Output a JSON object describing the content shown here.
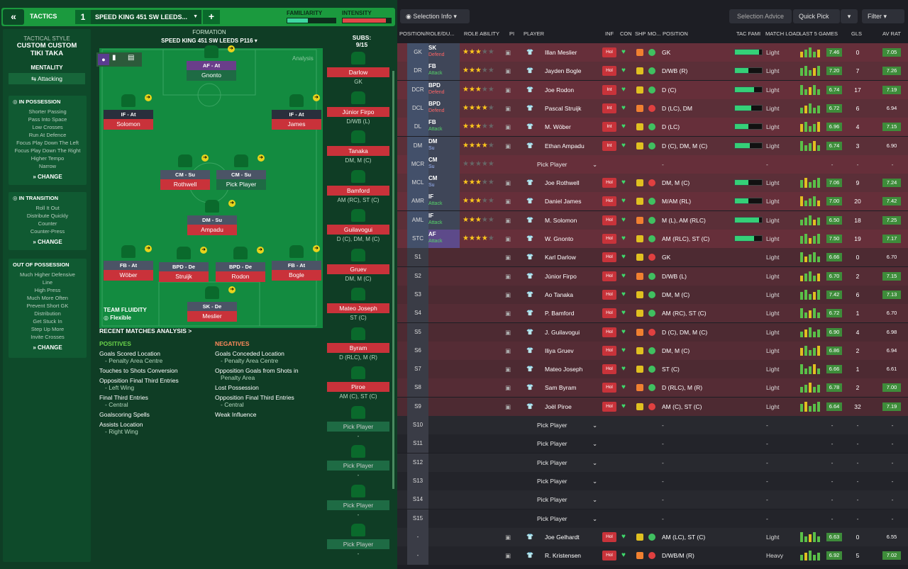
{
  "topbar": {
    "tactics": "TACTICS",
    "num": "1",
    "name": "SPEED KING 451 SW LEEDS...",
    "familiarity": "FAMILIARITY",
    "intensity": "INTENSITY",
    "fam_fraction": 0.42,
    "int_fraction": 0.9
  },
  "sidebar": {
    "style_title": "TACTICAL STYLE",
    "style_name": "CUSTOM CUSTOM TIKI TAKA",
    "mentality_title": "MENTALITY",
    "mentality": "Attacking",
    "in_possession": {
      "title": "IN POSSESSION",
      "items": [
        "Shorter Passing",
        "Pass Into Space",
        "Low Crosses",
        "Run At Defence",
        "Focus Play Down The Left",
        "Focus Play Down The Right",
        "Higher Tempo",
        "Narrow"
      ],
      "change": "CHANGE"
    },
    "in_transition": {
      "title": "IN TRANSITION",
      "items": [
        "Roll It Out",
        "Distribute Quickly",
        "Counter",
        "Counter-Press"
      ],
      "change": "CHANGE"
    },
    "out_of_possession": {
      "title": "OUT OF POSSESSION",
      "items": [
        "Much Higher Defensive",
        "Line",
        "High Press",
        "Much More Often",
        "Prevent Short GK",
        "Distribution",
        "Get Stuck In",
        "Step Up More",
        "Invite Crosses"
      ],
      "change": "CHANGE"
    }
  },
  "pitch": {
    "formation_title": "FORMATION",
    "formation_name": "SPEED KING 451 SW LEEDS P116",
    "analysis": "Analysis",
    "fluidity_title": "TEAM FLUIDITY",
    "fluidity": "Flexible",
    "players": [
      {
        "role": "AF - At",
        "name": "Gnonto"
      },
      {
        "role": "IF - At",
        "name": "Solomon"
      },
      {
        "role": "IF - At",
        "name": "James"
      },
      {
        "role": "CM - Su",
        "name": "Rothwell"
      },
      {
        "role": "CM - Su",
        "name": "Pick Player"
      },
      {
        "role": "DM - Su",
        "name": "Ampadu"
      },
      {
        "role": "FB - At",
        "name": "Wöber"
      },
      {
        "role": "BPD - De",
        "name": "Struijk"
      },
      {
        "role": "BPD - De",
        "name": "Rodon"
      },
      {
        "role": "FB - At",
        "name": "Bogle"
      },
      {
        "role": "SK - De",
        "name": "Meslier"
      }
    ]
  },
  "recent": {
    "title": "RECENT MATCHES ANALYSIS >",
    "positives_title": "POSITIVES",
    "negatives_title": "NEGATIVES",
    "positives": [
      {
        "a": "Goals Scored Location",
        "b": "- Penalty Area Centre"
      },
      {
        "a": "Touches to Shots Conversion",
        "b": ""
      },
      {
        "a": "Opposition Final Third Entries",
        "b": "- Left Wing"
      },
      {
        "a": "Final Third Entries",
        "b": "- Central"
      },
      {
        "a": "Goalscoring Spells",
        "b": ""
      },
      {
        "a": "Assists Location",
        "b": "- Right Wing"
      }
    ],
    "negatives": [
      {
        "a": "Goals Conceded Location",
        "b": "- Penalty Area Centre"
      },
      {
        "a": "Opposition Goals from Shots in",
        "b": "Penalty Area"
      },
      {
        "a": "Lost Possession",
        "b": ""
      },
      {
        "a": "Opposition Final Third Entries",
        "b": "- Central"
      },
      {
        "a": "Weak Influence",
        "b": ""
      }
    ]
  },
  "subs": {
    "title": "SUBS:",
    "count": "9/15",
    "list": [
      {
        "name": "Darlow",
        "pos": "GK"
      },
      {
        "name": "Júnior Firpo",
        "pos": "D/WB (L)"
      },
      {
        "name": "Tanaka",
        "pos": "DM, M (C)"
      },
      {
        "name": "Bamford",
        "pos": "AM (RC), ST (C)"
      },
      {
        "name": "Guilavogui",
        "pos": "D (C), DM, M (C)"
      },
      {
        "name": "Gruev",
        "pos": "DM, M (C)"
      },
      {
        "name": "Mateo Joseph",
        "pos": "ST (C)"
      },
      {
        "name": "Byram",
        "pos": "D (RLC), M (R)"
      },
      {
        "name": "Piroe",
        "pos": "AM (C), ST (C)"
      },
      {
        "name": "Pick Player",
        "pos": "-"
      },
      {
        "name": "Pick Player",
        "pos": "-"
      },
      {
        "name": "Pick Player",
        "pos": "-"
      },
      {
        "name": "Pick Player",
        "pos": "-"
      }
    ]
  },
  "right": {
    "selection_info": "Selection Info",
    "selection_advice": "Selection Advice",
    "quick_pick": "Quick Pick",
    "filter": "Filter",
    "headers": [
      "POSITION/ROLE/DU...",
      "ROLE ABILITY",
      "PI",
      "PLAYER",
      "INF",
      "CON",
      "SHP",
      "MO...",
      "POSITION",
      "TAC FAMI",
      "MATCH LOAD",
      "LAST 5 GAMES",
      "GLS",
      "AV RAT"
    ],
    "rows": [
      {
        "pos": "GK",
        "role": "SK",
        "duty": "Defend",
        "stars": 3,
        "name": "Illan Meslier",
        "inf": "Hol",
        "position": "GK",
        "tac": 0.9,
        "load": "Light",
        "avg": "7.46",
        "gls": "0",
        "av": "7.05"
      },
      {
        "pos": "DR",
        "role": "FB",
        "duty": "Attack",
        "stars": 3,
        "name": "Jayden Bogle",
        "inf": "Hol",
        "position": "D/WB (R)",
        "tac": 0.5,
        "load": "Light",
        "avg": "7.20",
        "gls": "7",
        "av": "7.26"
      },
      {
        "pos": "DCR",
        "role": "BPD",
        "duty": "Defend",
        "stars": 3,
        "name": "Joe Rodon",
        "inf": "Int",
        "position": "D (C)",
        "tac": 0.7,
        "load": "Light",
        "avg": "6.74",
        "gls": "17",
        "av": "7.19"
      },
      {
        "pos": "DCL",
        "role": "BPD",
        "duty": "Defend",
        "stars": 3.5,
        "name": "Pascal Struijk",
        "inf": "Int",
        "position": "D (LC), DM",
        "tac": 0.6,
        "load": "Light",
        "avg": "6.72",
        "gls": "6",
        "av": "6.94"
      },
      {
        "pos": "DL",
        "role": "FB",
        "duty": "Attack",
        "stars": 3,
        "name": "M. Wöber",
        "inf": "Int",
        "position": "D (LC)",
        "tac": 0.5,
        "load": "Light",
        "avg": "6.96",
        "gls": "4",
        "av": "7.15"
      },
      {
        "pos": "DM",
        "role": "DM",
        "duty": "Su",
        "stars": 3.5,
        "name": "Ethan Ampadu",
        "inf": "Int",
        "position": "D (C), DM, M (C)",
        "tac": 0.55,
        "load": "Light",
        "avg": "6.74",
        "gls": "3",
        "av": "6.90"
      },
      {
        "pos": "MCR",
        "role": "CM",
        "duty": "Su",
        "stars": 0,
        "name": "Pick Player",
        "inf": "",
        "position": "-",
        "tac": 0,
        "load": "-",
        "avg": "-",
        "gls": "-",
        "av": "-"
      },
      {
        "pos": "MCL",
        "role": "CM",
        "duty": "Su",
        "stars": 2.5,
        "name": "Joe Rothwell",
        "inf": "Hol",
        "position": "DM, M (C)",
        "tac": 0.5,
        "load": "Light",
        "avg": "7.06",
        "gls": "9",
        "av": "7.24"
      },
      {
        "pos": "AMR",
        "role": "IF",
        "duty": "Attack",
        "stars": 3,
        "name": "Daniel James",
        "inf": "Hol",
        "position": "M/AM (RL)",
        "tac": 0.5,
        "load": "Light",
        "avg": "7.00",
        "gls": "20",
        "av": "7.42"
      },
      {
        "pos": "AML",
        "role": "IF",
        "duty": "Attack",
        "stars": 3,
        "name": "M. Solomon",
        "inf": "Hol",
        "position": "M (L), AM (RLC)",
        "tac": 0.9,
        "load": "Light",
        "avg": "6.50",
        "gls": "18",
        "av": "7.25"
      },
      {
        "pos": "STC",
        "role": "AF",
        "duty": "Attack",
        "stars": 3.5,
        "name": "W. Gnonto",
        "inf": "Hol",
        "position": "AM (RLC), ST (C)",
        "tac": 0.7,
        "load": "Light",
        "avg": "7.50",
        "gls": "19",
        "av": "7.17"
      },
      {
        "pos": "S1",
        "role": "",
        "duty": "",
        "stars": 0,
        "name": "Karl Darlow",
        "inf": "Hol",
        "position": "GK",
        "tac": 0,
        "load": "Light",
        "avg": "6.66",
        "gls": "0",
        "av": "6.70"
      },
      {
        "pos": "S2",
        "role": "",
        "duty": "",
        "stars": 0,
        "name": "Júnior Firpo",
        "inf": "Hol",
        "position": "D/WB (L)",
        "tac": 0,
        "load": "Light",
        "avg": "6.70",
        "gls": "2",
        "av": "7.15"
      },
      {
        "pos": "S3",
        "role": "",
        "duty": "",
        "stars": 0,
        "name": "Ao Tanaka",
        "inf": "Hol",
        "position": "DM, M (C)",
        "tac": 0,
        "load": "Light",
        "avg": "7.42",
        "gls": "6",
        "av": "7.13"
      },
      {
        "pos": "S4",
        "role": "",
        "duty": "",
        "stars": 0,
        "name": "P. Bamford",
        "inf": "Hol",
        "position": "AM (RC), ST (C)",
        "tac": 0,
        "load": "Light",
        "avg": "6.72",
        "gls": "1",
        "av": "6.70"
      },
      {
        "pos": "S5",
        "role": "",
        "duty": "",
        "stars": 0,
        "name": "J. Guilavogui",
        "inf": "Hol",
        "position": "D (C), DM, M (C)",
        "tac": 0,
        "load": "Light",
        "avg": "6.90",
        "gls": "4",
        "av": "6.98"
      },
      {
        "pos": "S6",
        "role": "",
        "duty": "",
        "stars": 0,
        "name": "Iliya Gruev",
        "inf": "Hol",
        "position": "DM, M (C)",
        "tac": 0,
        "load": "Light",
        "avg": "6.86",
        "gls": "2",
        "av": "6.94"
      },
      {
        "pos": "S7",
        "role": "",
        "duty": "",
        "stars": 0,
        "name": "Mateo Joseph",
        "inf": "Hol",
        "position": "ST (C)",
        "tac": 0,
        "load": "Light",
        "avg": "6.66",
        "gls": "1",
        "av": "6.61"
      },
      {
        "pos": "S8",
        "role": "",
        "duty": "",
        "stars": 0,
        "name": "Sam Byram",
        "inf": "Hol",
        "position": "D (RLC), M (R)",
        "tac": 0,
        "load": "Light",
        "avg": "6.78",
        "gls": "2",
        "av": "7.00"
      },
      {
        "pos": "S9",
        "role": "",
        "duty": "",
        "stars": 0,
        "name": "Joël Piroe",
        "inf": "Hol",
        "position": "AM (C), ST (C)",
        "tac": 0,
        "load": "Light",
        "avg": "6.64",
        "gls": "32",
        "av": "7.19"
      },
      {
        "pos": "S10",
        "role": "",
        "duty": "",
        "stars": 0,
        "name": "Pick Player",
        "inf": "",
        "position": "-",
        "tac": 0,
        "load": "-",
        "avg": "-",
        "gls": "-",
        "av": "-"
      },
      {
        "pos": "S11",
        "role": "",
        "duty": "",
        "stars": 0,
        "name": "Pick Player",
        "inf": "",
        "position": "-",
        "tac": 0,
        "load": "-",
        "avg": "-",
        "gls": "-",
        "av": "-"
      },
      {
        "pos": "S12",
        "role": "",
        "duty": "",
        "stars": 0,
        "name": "Pick Player",
        "inf": "",
        "position": "-",
        "tac": 0,
        "load": "-",
        "avg": "-",
        "gls": "-",
        "av": "-"
      },
      {
        "pos": "S13",
        "role": "",
        "duty": "",
        "stars": 0,
        "name": "Pick Player",
        "inf": "",
        "position": "-",
        "tac": 0,
        "load": "-",
        "avg": "-",
        "gls": "-",
        "av": "-"
      },
      {
        "pos": "S14",
        "role": "",
        "duty": "",
        "stars": 0,
        "name": "Pick Player",
        "inf": "",
        "position": "-",
        "tac": 0,
        "load": "-",
        "avg": "-",
        "gls": "-",
        "av": "-"
      },
      {
        "pos": "S15",
        "role": "",
        "duty": "",
        "stars": 0,
        "name": "Pick Player",
        "inf": "",
        "position": "-",
        "tac": 0,
        "load": "-",
        "avg": "-",
        "gls": "-",
        "av": "-"
      },
      {
        "pos": "-",
        "role": "",
        "duty": "",
        "stars": 0,
        "name": "Joe Gelhardt",
        "inf": "Hol",
        "position": "AM (LC), ST (C)",
        "tac": 0,
        "load": "Light",
        "avg": "6.63",
        "gls": "0",
        "av": "6.55"
      },
      {
        "pos": "-",
        "role": "",
        "duty": "",
        "stars": 0,
        "name": "R. Kristensen",
        "inf": "Hol",
        "position": "D/WB/M (R)",
        "tac": 0,
        "load": "Heavy",
        "avg": "6.92",
        "gls": "5",
        "av": "7.02"
      }
    ]
  }
}
